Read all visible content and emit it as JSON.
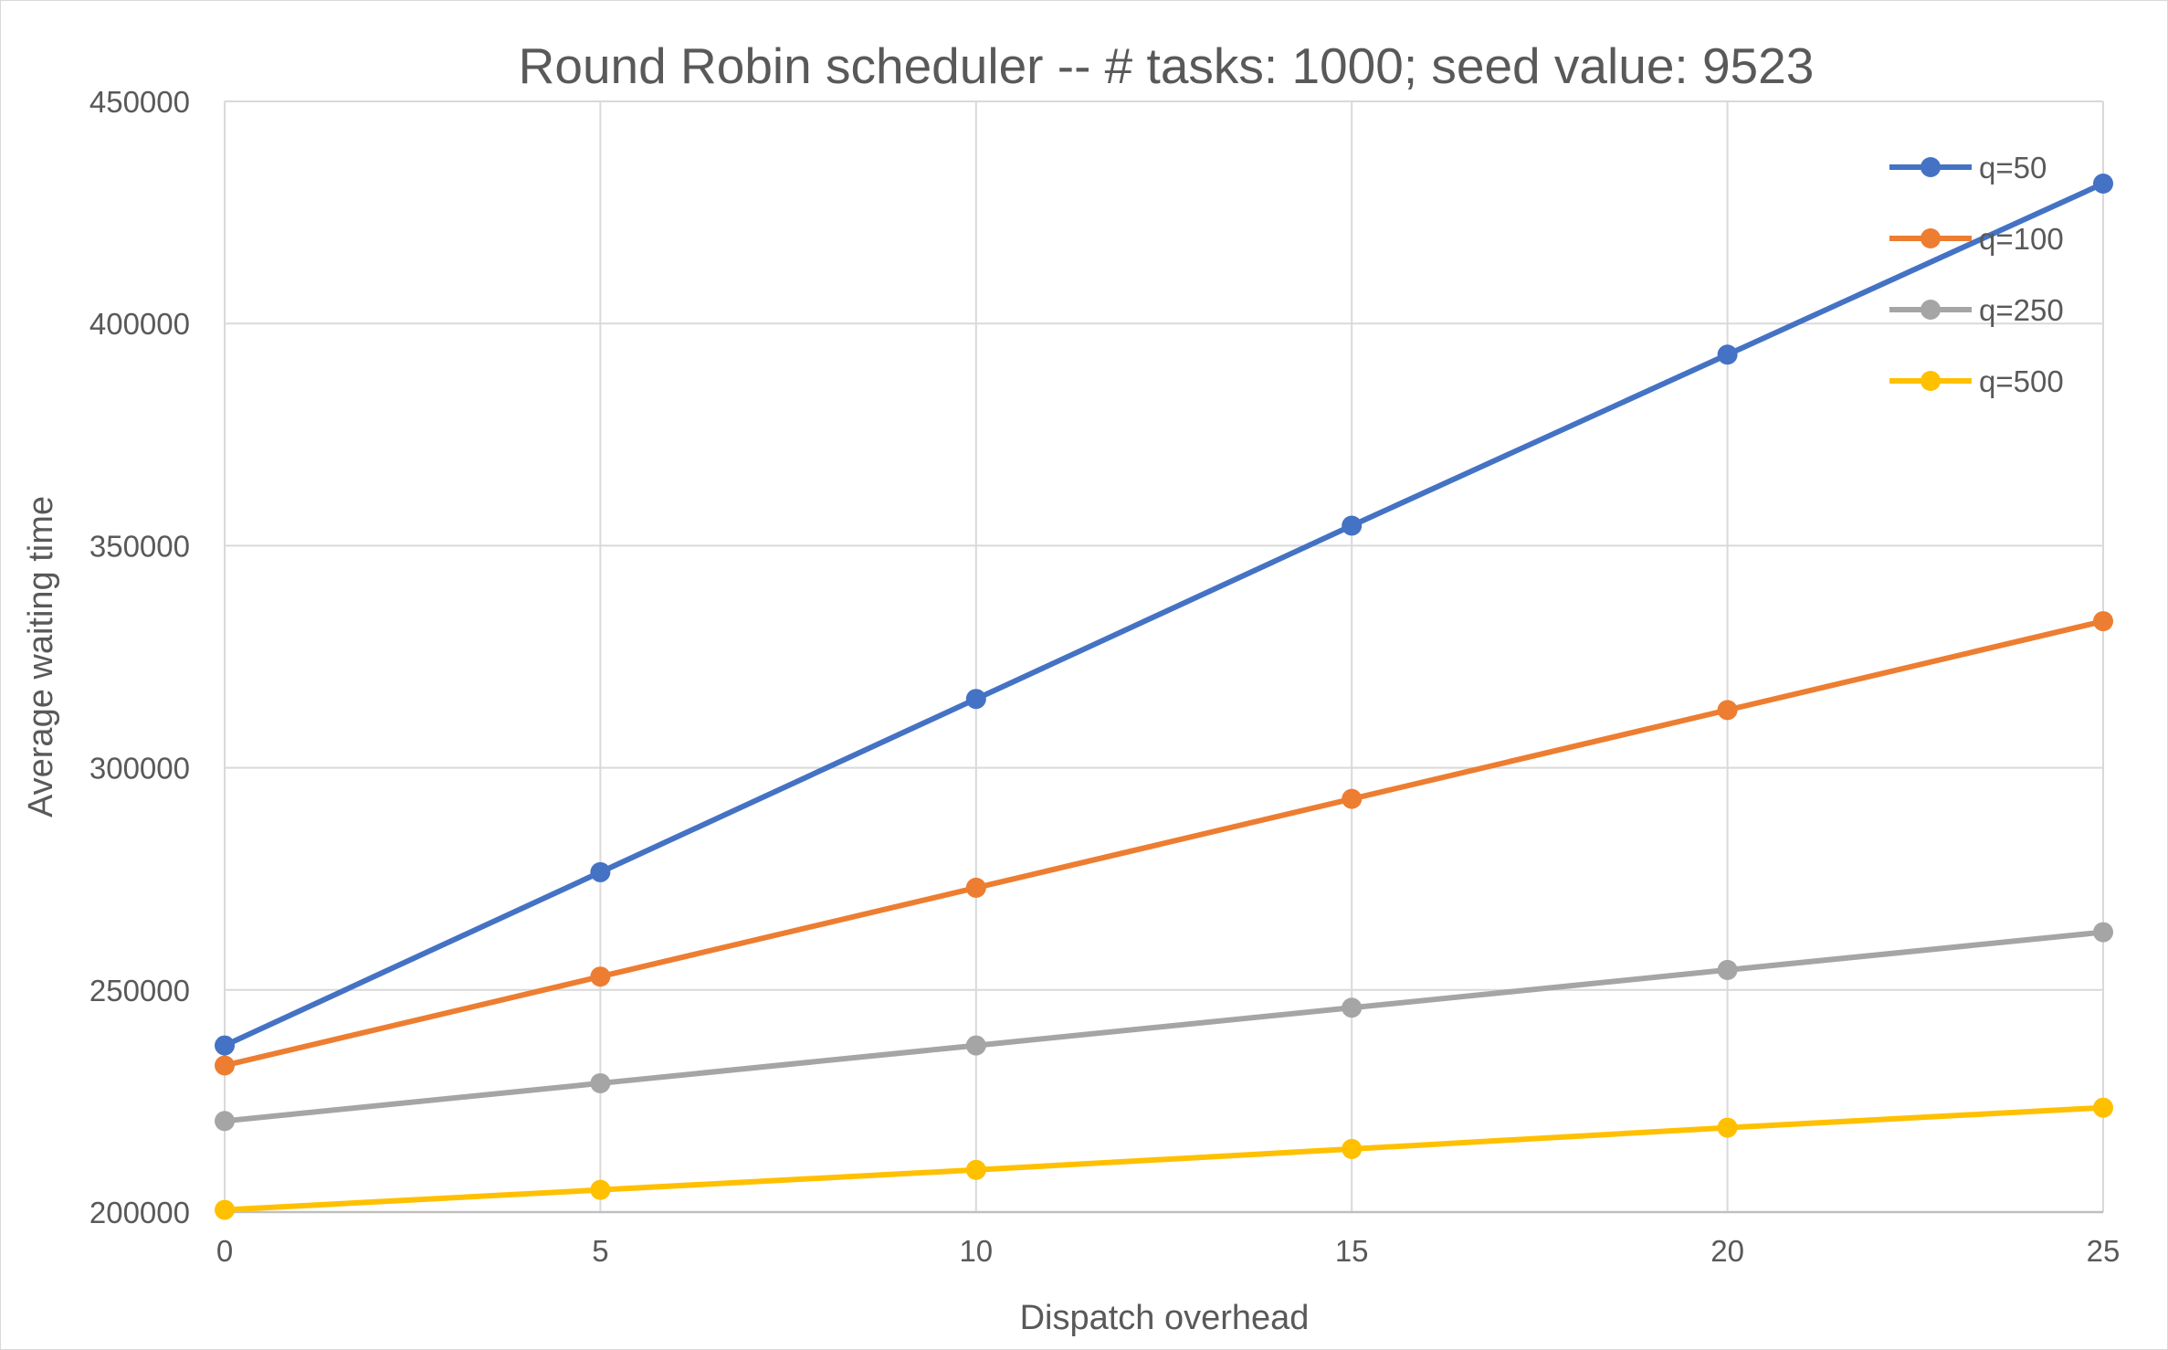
{
  "chart_data": {
    "type": "line",
    "title": "Round Robin scheduler -- # tasks: 1000; seed value: 9523",
    "xlabel": "Dispatch overhead",
    "ylabel": "Average waiting time",
    "x": [
      0,
      5,
      10,
      15,
      20,
      25
    ],
    "xlim": [
      0,
      25
    ],
    "ylim": [
      200000,
      450000
    ],
    "x_ticks": [
      "0",
      "5",
      "10",
      "15",
      "20",
      "25"
    ],
    "y_ticks": [
      "200000",
      "250000",
      "300000",
      "350000",
      "400000",
      "450000"
    ],
    "grid": true,
    "legend_position": "top-right",
    "series": [
      {
        "name": "q=50",
        "color": "#4472C4",
        "values": [
          237500,
          276500,
          315500,
          354500,
          393000,
          431500
        ]
      },
      {
        "name": "q=100",
        "color": "#ED7D31",
        "values": [
          233000,
          253000,
          273000,
          293000,
          313000,
          333000
        ]
      },
      {
        "name": "q=250",
        "color": "#A5A5A5",
        "values": [
          220500,
          229000,
          237500,
          246000,
          254500,
          263000
        ]
      },
      {
        "name": "q=500",
        "color": "#FFC000",
        "values": [
          200500,
          205000,
          209500,
          214200,
          219000,
          223500
        ]
      }
    ]
  }
}
